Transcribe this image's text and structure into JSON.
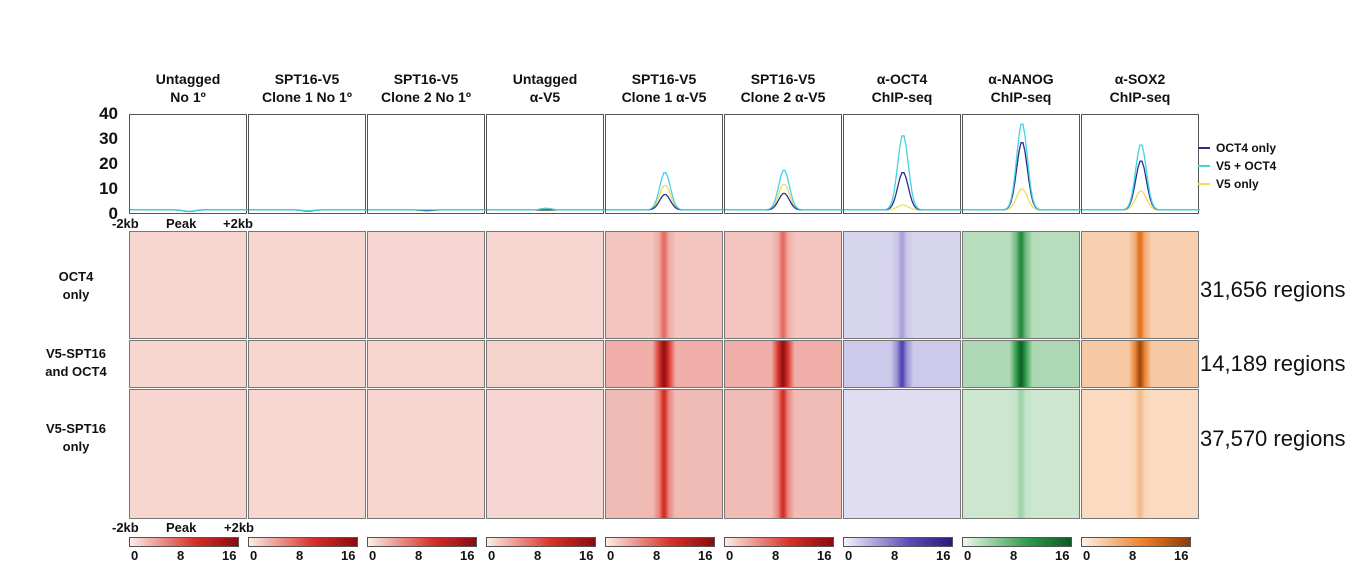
{
  "chart_data": {
    "type": "heatmap",
    "columns": [
      {
        "title": "Untagged\nNo 1º",
        "colormap": "red",
        "signal": 0.03,
        "profile_peaks": {
          "oct4_only": 0.2,
          "v5_oct4": 0.3,
          "v5_only": 0.2
        }
      },
      {
        "title": "SPT16-V5\nClone 1 No 1º",
        "colormap": "red",
        "signal": 0.03,
        "profile_peaks": {
          "oct4_only": 0.4,
          "v5_oct4": 0.6,
          "v5_only": 0.3
        }
      },
      {
        "title": "SPT16-V5\nClone 2 No 1º",
        "colormap": "red",
        "signal": 0.04,
        "profile_peaks": {
          "oct4_only": 0.6,
          "v5_oct4": 0.9,
          "v5_only": 0.4
        }
      },
      {
        "title": "Untagged\nα-V5",
        "colormap": "red",
        "signal": 0.06,
        "profile_peaks": {
          "oct4_only": 0.9,
          "v5_oct4": 1.6,
          "v5_only": 0.6
        }
      },
      {
        "title": "SPT16-V5\nClone 1 α-V5",
        "colormap": "red",
        "signal": 0.9,
        "profile_peaks": {
          "oct4_only": 7.5,
          "v5_oct4": 17,
          "v5_only": 11.5
        }
      },
      {
        "title": "SPT16-V5\nClone 2 α-V5",
        "colormap": "red",
        "signal": 0.9,
        "profile_peaks": {
          "oct4_only": 8,
          "v5_oct4": 18,
          "v5_only": 12
        }
      },
      {
        "title": "α-OCT4\nChIP-seq",
        "colormap": "purple",
        "signal": 0.55,
        "profile_peaks": {
          "oct4_only": 17,
          "v5_oct4": 33,
          "v5_only": 3
        }
      },
      {
        "title": "α-NANOG\nChIP-seq",
        "colormap": "green",
        "signal": 0.9,
        "profile_peaks": {
          "oct4_only": 30,
          "v5_oct4": 38,
          "v5_only": 10
        }
      },
      {
        "title": "α-SOX2\nChIP-seq",
        "colormap": "orange",
        "signal": 0.85,
        "profile_peaks": {
          "oct4_only": 22,
          "v5_oct4": 29,
          "v5_only": 9
        }
      }
    ],
    "profile": {
      "yticks": [
        0,
        10,
        20,
        30,
        40
      ],
      "ylim": [
        0,
        40
      ],
      "xtick_labels": [
        "-2kb",
        "Peak",
        "+2kb"
      ],
      "legend": [
        {
          "label": "OCT4 only",
          "color": "#2a2f8f"
        },
        {
          "label": "V5 + OCT4",
          "color": "#46d2e3"
        },
        {
          "label": "V5 only",
          "color": "#f3dc5a"
        }
      ]
    },
    "row_groups": [
      {
        "label": "OCT4\nonly",
        "regions": "31,656 regions",
        "count": 31656,
        "group_key": "oct4_only"
      },
      {
        "label": "V5-SPT16\nand OCT4",
        "regions": "14,189 regions",
        "count": 14189,
        "group_key": "v5_oct4"
      },
      {
        "label": "V5-SPT16\nonly",
        "regions": "37,570 regions",
        "count": 37570,
        "group_key": "v5_only"
      }
    ],
    "heatmap_xtick_labels": [
      "-2kb",
      "Peak",
      "+2kb"
    ],
    "colorbar": {
      "ticks": [
        "0",
        "8",
        "16"
      ],
      "range": [
        0,
        16
      ]
    },
    "colormaps": {
      "red": [
        "#fbeee8",
        "#d73027",
        "#8a0a10"
      ],
      "purple": [
        "#f4f3fb",
        "#5b4db8",
        "#2d1a7a"
      ],
      "green": [
        "#eef8ea",
        "#2f9a4a",
        "#0b5a22"
      ],
      "orange": [
        "#fdf1e4",
        "#ea7a23",
        "#8b3a0b"
      ]
    }
  }
}
